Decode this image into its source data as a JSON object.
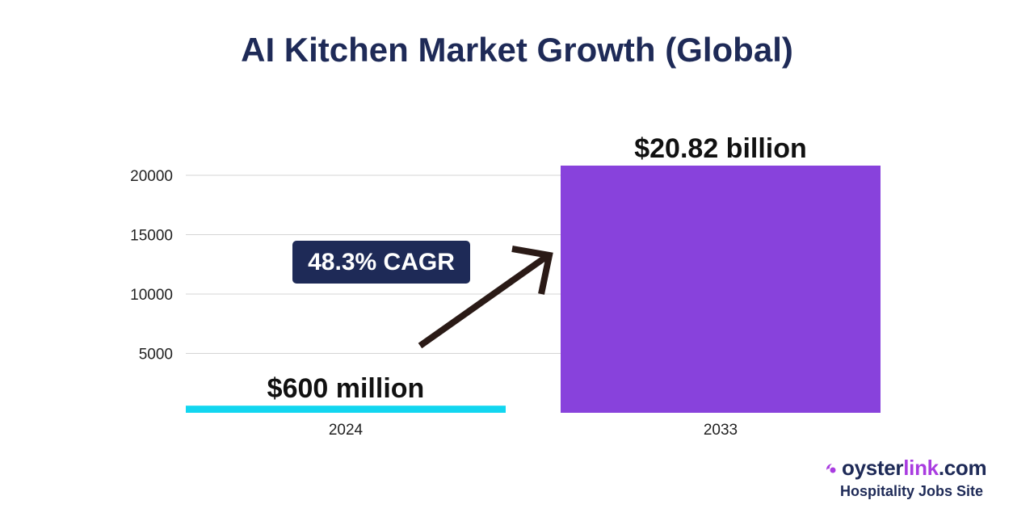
{
  "chart_data": {
    "type": "bar",
    "title": "AI Kitchen Market Growth (Global)",
    "categories": [
      "2024",
      "2033"
    ],
    "values": [
      600,
      20820
    ],
    "data_labels": [
      "$600 million",
      "$20.82 billion"
    ],
    "colors": [
      "#12d6f0",
      "#8842dc"
    ],
    "yticks": [
      5000,
      10000,
      15000,
      20000
    ],
    "ylim": [
      0,
      20820
    ],
    "grid": true,
    "annotation": "48.3% CAGR"
  },
  "brand": {
    "name_part1": "oyster",
    "name_part2": "link",
    "name_part3": ".com",
    "tagline": "Hospitality Jobs Site",
    "accent_color": "#a93ce0",
    "icon": "oyster-swirl-icon"
  }
}
